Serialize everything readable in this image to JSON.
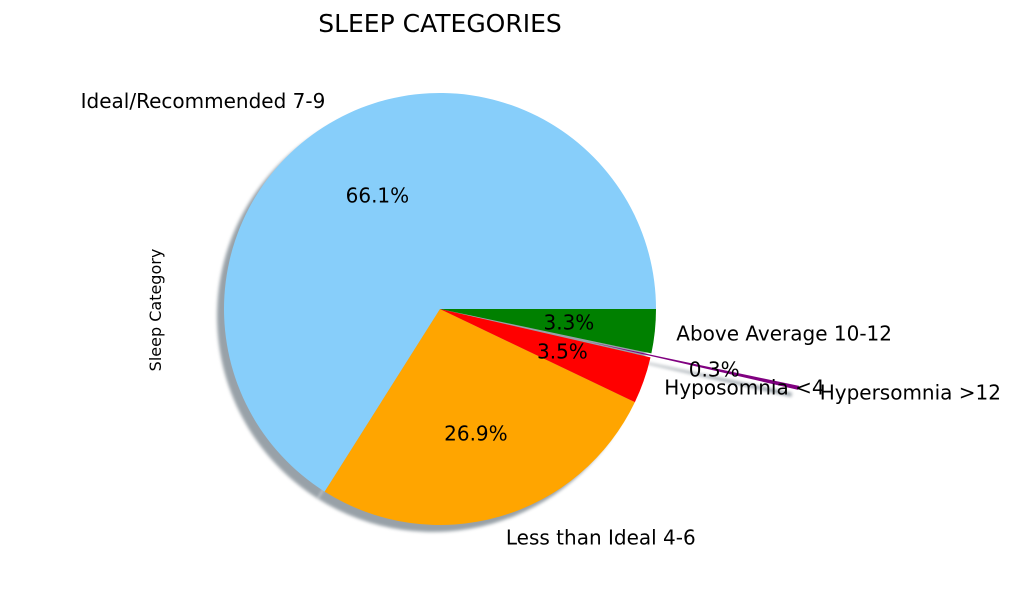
{
  "chart_data": {
    "type": "pie",
    "title": "SLEEP CATEGORIES",
    "ylabel": "Sleep Category",
    "shadow": true,
    "slices": [
      {
        "label": "Ideal/Recommended 7-9",
        "value": 66.1,
        "pct_label": "66.1%",
        "color": "#87CEFA",
        "explode": 0
      },
      {
        "label": "Less than Ideal 4-6",
        "value": 26.9,
        "pct_label": "26.9%",
        "color": "#FFA500",
        "explode": 0
      },
      {
        "label": "Hyposomnia <4",
        "value": 3.5,
        "pct_label": "3.5%",
        "color": "#FF0000",
        "explode": 0
      },
      {
        "label": "Hypersomnia >12",
        "value": 0.3,
        "pct_label": "0.3%",
        "color": "#800080",
        "explode": 0.7
      },
      {
        "label": "Above Average 10-12",
        "value": 3.3,
        "pct_label": "3.3%",
        "color": "#008000",
        "explode": 0
      }
    ]
  }
}
